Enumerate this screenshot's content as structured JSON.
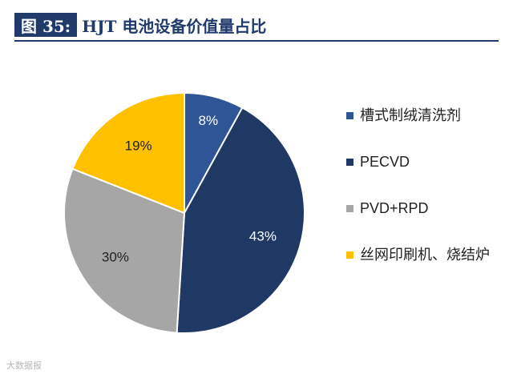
{
  "header": {
    "figure_label": "图 35:",
    "title": "HJT 电池设备价值量占比"
  },
  "watermark": "大数据报",
  "chart_data": {
    "type": "pie",
    "title": "HJT 电池设备价值量占比",
    "slices": [
      {
        "label": "槽式制绒清洗剂",
        "value": 8,
        "data_label": "8%",
        "color": "#2f5597"
      },
      {
        "label": "PECVD",
        "value": 43,
        "data_label": "43%",
        "color": "#1f3864"
      },
      {
        "label": "PVD+RPD",
        "value": 30,
        "data_label": "30%",
        "color": "#a6a6a6"
      },
      {
        "label": "丝网印刷机、烧结炉",
        "value": 19,
        "data_label": "19%",
        "color": "#ffc000"
      }
    ],
    "start_angle": "top, clockwise",
    "legend_position": "right"
  }
}
